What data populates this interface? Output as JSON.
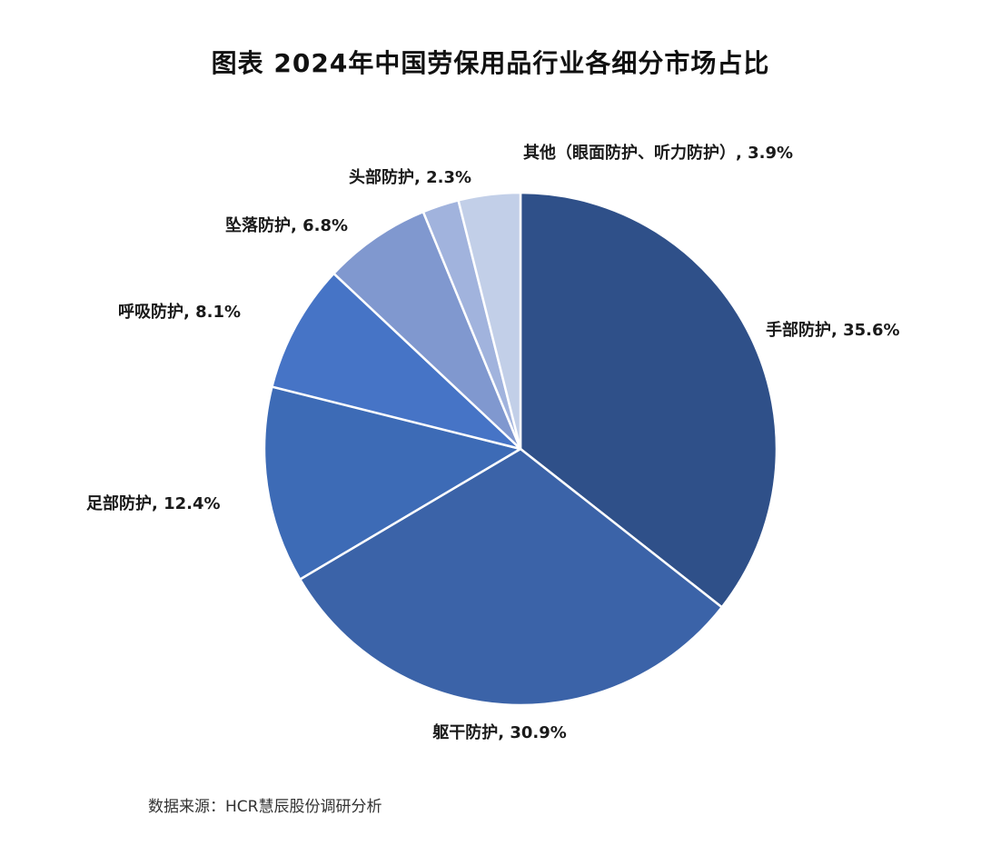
{
  "chart_data": {
    "type": "pie",
    "title": "图表  2024年中国劳保用品行业各细分市场占比",
    "unit": "%",
    "start_angle": "12 o'clock",
    "direction": "clockwise",
    "slices": [
      {
        "name": "手部防护",
        "value": 35.6,
        "label": "手部防护, 35.6%",
        "color": "#2f5089"
      },
      {
        "name": "躯干防护",
        "value": 30.9,
        "label": "躯干防护, 30.9%",
        "color": "#3b63a8"
      },
      {
        "name": "足部防护",
        "value": 12.4,
        "label": "足部防护, 12.4%",
        "color": "#3d6bb6"
      },
      {
        "name": "呼吸防护",
        "value": 8.1,
        "label": "呼吸防护, 8.1%",
        "color": "#4674c6"
      },
      {
        "name": "坠落防护",
        "value": 6.8,
        "label": "坠落防护, 6.8%",
        "color": "#8098cf"
      },
      {
        "name": "头部防护",
        "value": 2.3,
        "label": "头部防护, 2.3%",
        "color": "#a1b3dd"
      },
      {
        "name": "其他（眼面防护、听力防护）",
        "value": 3.9,
        "label": "其他（眼面防护、听力防护）, 3.9%",
        "color": "#c2cfe8"
      }
    ],
    "slice_border_color": "#ffffff"
  },
  "source": "数据来源：HCR慧辰股份调研分析"
}
